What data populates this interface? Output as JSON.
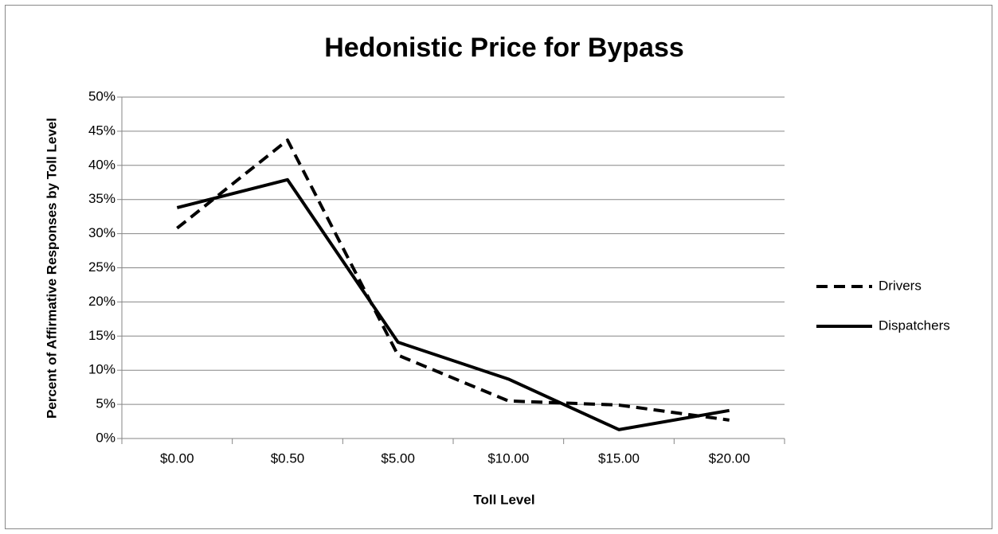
{
  "chart_data": {
    "type": "line",
    "title": "Hedonistic Price for Bypass",
    "x_label": "Toll Level",
    "y_label": "Percent of Affirmative Responses by Toll Level",
    "categories": [
      "$0.00",
      "$0.50",
      "$5.00",
      "$10.00",
      "$15.00",
      "$20.00"
    ],
    "series": [
      {
        "name": "Drivers",
        "color": "#000000",
        "line_style": "dashed",
        "values": [
          30.8,
          43.7,
          12.2,
          5.5,
          4.9,
          2.7
        ]
      },
      {
        "name": "Dispatchers",
        "color": "#000000",
        "line_style": "solid",
        "values": [
          33.8,
          37.9,
          14.1,
          8.7,
          1.3,
          4.1
        ]
      }
    ],
    "ylim": [
      0,
      50
    ],
    "yticks": [
      {
        "value": 0,
        "label": "0%"
      },
      {
        "value": 5,
        "label": "5%"
      },
      {
        "value": 10,
        "label": "10%"
      },
      {
        "value": 15,
        "label": "15%"
      },
      {
        "value": 20,
        "label": "20%"
      },
      {
        "value": 25,
        "label": "25%"
      },
      {
        "value": 30,
        "label": "30%"
      },
      {
        "value": 35,
        "label": "35%"
      },
      {
        "value": 40,
        "label": "40%"
      },
      {
        "value": 45,
        "label": "45%"
      },
      {
        "value": 50,
        "label": "50%"
      }
    ],
    "grid": true,
    "legend": "right"
  }
}
